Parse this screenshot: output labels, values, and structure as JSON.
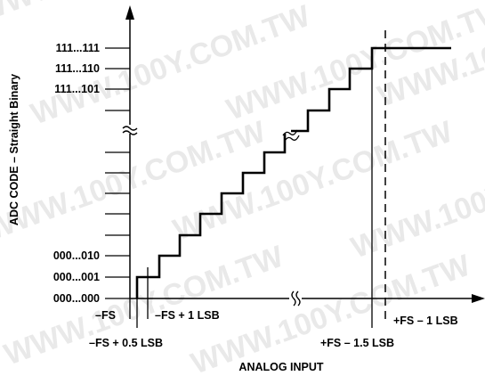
{
  "watermark": "WWW.100Y.COM.TW",
  "y_axis": {
    "title": "ADC CODE – Straight Binary",
    "codes_top": [
      "111...111",
      "111...110",
      "111...101"
    ],
    "codes_bottom": [
      "000...010",
      "000...001",
      "000...000"
    ]
  },
  "x_axis": {
    "title": "ANALOG INPUT",
    "neg_fs": "–FS",
    "neg_fs_plus_1lsb": "–FS + 1 LSB",
    "neg_fs_plus_half_lsb": "–FS + 0.5 LSB",
    "pos_fs_minus_1lsb": "+FS – 1 LSB",
    "pos_fs_minus_1p5lsb": "+FS – 1.5 LSB"
  },
  "colors": {
    "ink": "#000000",
    "watermark": "#e9e9e9"
  }
}
